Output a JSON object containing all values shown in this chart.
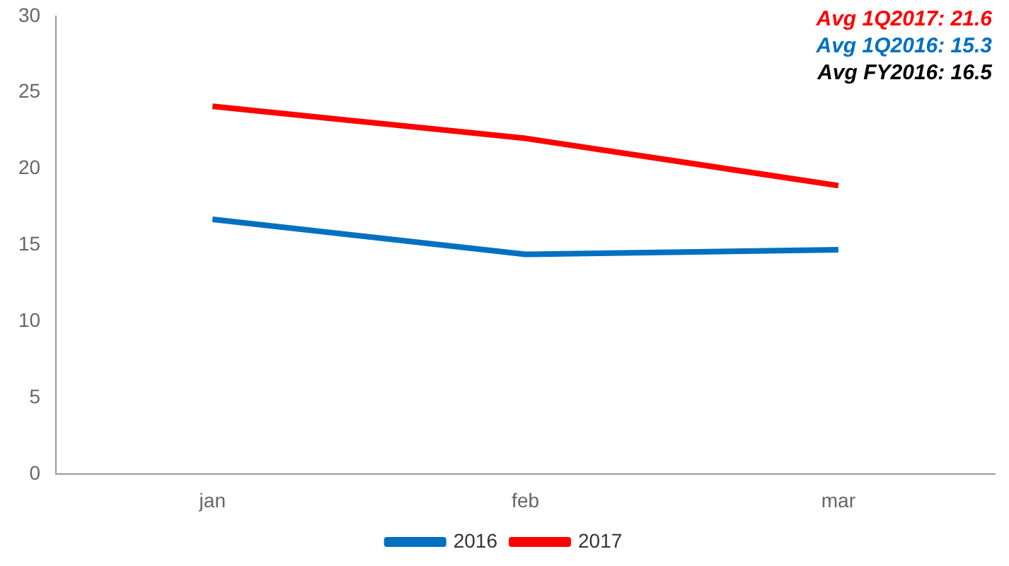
{
  "chart_data": {
    "type": "line",
    "categories": [
      "jan",
      "feb",
      "mar"
    ],
    "series": [
      {
        "name": "2016",
        "color": "#0070c0",
        "values": [
          16.7,
          14.4,
          14.7
        ]
      },
      {
        "name": "2017",
        "color": "#ff0000",
        "values": [
          24.1,
          22.0,
          18.9
        ]
      }
    ],
    "ylim": [
      0,
      30
    ],
    "yticks": [
      0,
      5,
      10,
      15,
      20,
      25,
      30
    ],
    "grid": false,
    "legend": "bottom",
    "marker": "none",
    "annotations": [
      "Avg 1Q2017: 21.6",
      "Avg 1Q2016: 15.3",
      "Avg FY2016: 16.5"
    ]
  }
}
